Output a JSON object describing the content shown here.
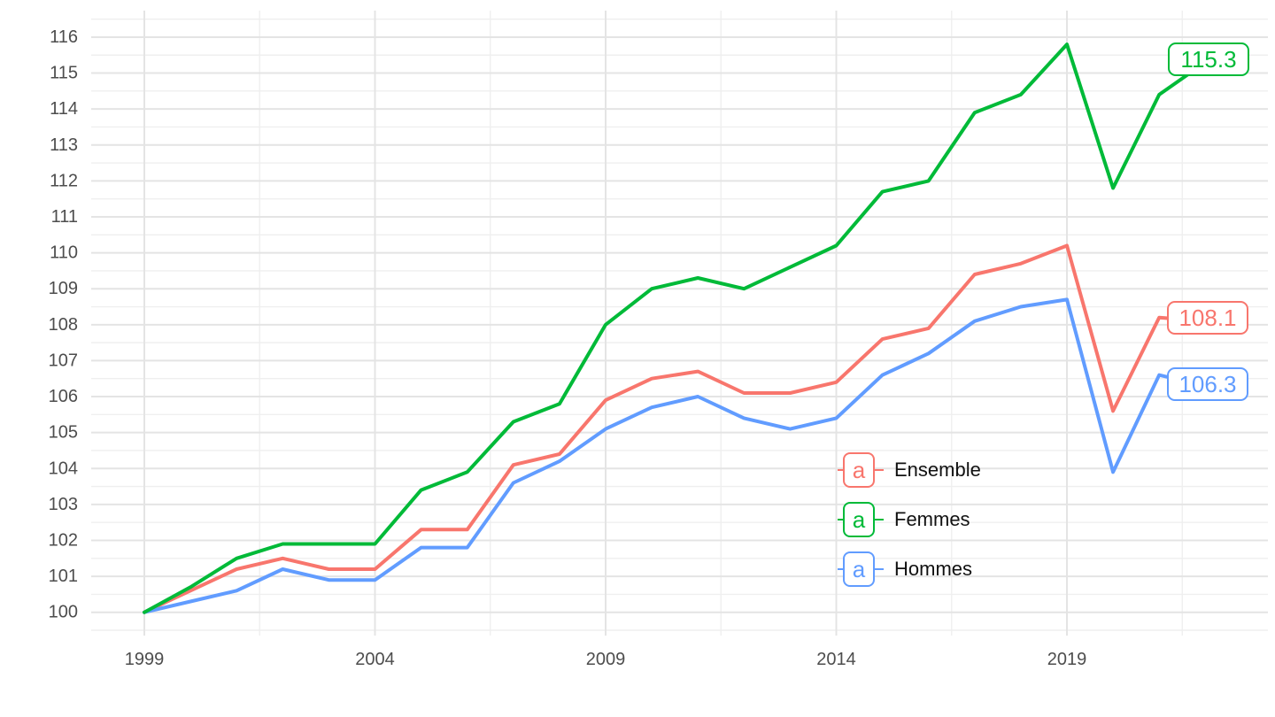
{
  "chart_data": {
    "type": "line",
    "title": "",
    "xlabel": "",
    "ylabel": "",
    "x": [
      1999,
      2000,
      2001,
      2002,
      2003,
      2004,
      2005,
      2006,
      2007,
      2008,
      2009,
      2010,
      2011,
      2012,
      2013,
      2014,
      2015,
      2016,
      2017,
      2018,
      2019,
      2020,
      2021,
      2022
    ],
    "series": [
      {
        "name": "Ensemble",
        "color": "#F8766D",
        "values": [
          100,
          100.6,
          101.2,
          101.5,
          101.2,
          101.2,
          102.3,
          102.3,
          104.1,
          104.4,
          105.9,
          106.5,
          106.7,
          106.1,
          106.1,
          106.4,
          107.6,
          107.9,
          109.4,
          109.7,
          110.2,
          105.6,
          108.2,
          108.1
        ],
        "final_label": "108.1"
      },
      {
        "name": "Femmes",
        "color": "#00BA38",
        "values": [
          100,
          100.7,
          101.5,
          101.9,
          101.9,
          101.9,
          103.4,
          103.9,
          105.3,
          105.8,
          108.0,
          109.0,
          109.3,
          109.0,
          109.6,
          110.2,
          111.7,
          112.0,
          113.9,
          114.4,
          115.8,
          111.8,
          114.4,
          115.3
        ],
        "final_label": "115.3"
      },
      {
        "name": "Hommes",
        "color": "#619CFF",
        "values": [
          100,
          100.3,
          100.6,
          101.2,
          100.9,
          100.9,
          101.8,
          101.8,
          103.6,
          104.2,
          105.1,
          105.7,
          106.0,
          105.4,
          105.1,
          105.4,
          106.6,
          107.2,
          108.1,
          108.5,
          108.7,
          103.9,
          106.6,
          106.3
        ],
        "final_label": "106.3"
      }
    ],
    "x_ticks": [
      "1999",
      "2004",
      "2009",
      "2014",
      "2019"
    ],
    "y_ticks": [
      "100",
      "101",
      "102",
      "103",
      "104",
      "105",
      "106",
      "107",
      "108",
      "109",
      "110",
      "111",
      "112",
      "113",
      "114",
      "115",
      "116"
    ],
    "xlim": [
      1997.8,
      2023.4
    ],
    "ylim": [
      99.4,
      116.7
    ],
    "grid": "major and minor, light grey on white",
    "legend_position": "inside right, below center",
    "legend_key_glyph": "a"
  }
}
